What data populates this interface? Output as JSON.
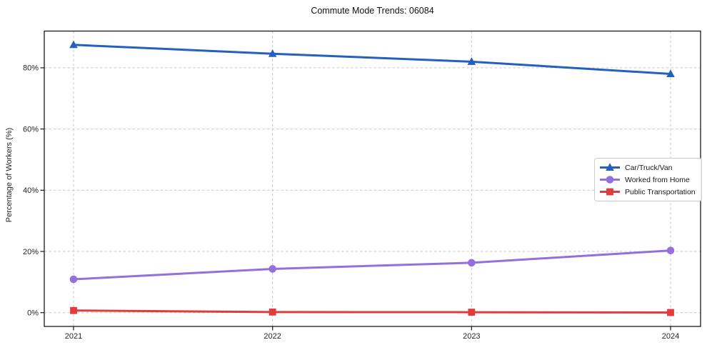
{
  "chart_data": {
    "type": "line",
    "title": "Commute Mode Trends: 06084",
    "xlabel": "",
    "ylabel": "Percentage of Workers (%)",
    "categories": [
      "2021",
      "2022",
      "2023",
      "2024"
    ],
    "series": [
      {
        "name": "Car/Truck/Van",
        "marker": "triangle",
        "color": "#2360bf",
        "values": [
          87.5,
          84.6,
          82.0,
          78.0
        ]
      },
      {
        "name": "Worked from Home",
        "marker": "circle",
        "color": "#9370db",
        "values": [
          10.9,
          14.3,
          16.3,
          20.3
        ]
      },
      {
        "name": "Public Transportation",
        "marker": "square",
        "color": "#e13c3c",
        "values": [
          0.7,
          0.2,
          0.15,
          0.05
        ]
      }
    ],
    "yticks": [
      0,
      20,
      40,
      60,
      80
    ],
    "ytick_labels": [
      "0%",
      "20%",
      "40%",
      "60%",
      "80%"
    ],
    "ylim": [
      -4.5,
      92
    ],
    "grid": true,
    "grid_style": "dashed",
    "legend_position": "center right",
    "colors": {
      "grid": "#c9c9c9",
      "axis": "#1a1a1a",
      "tick_text": "#262626",
      "background": "#ffffff"
    }
  }
}
